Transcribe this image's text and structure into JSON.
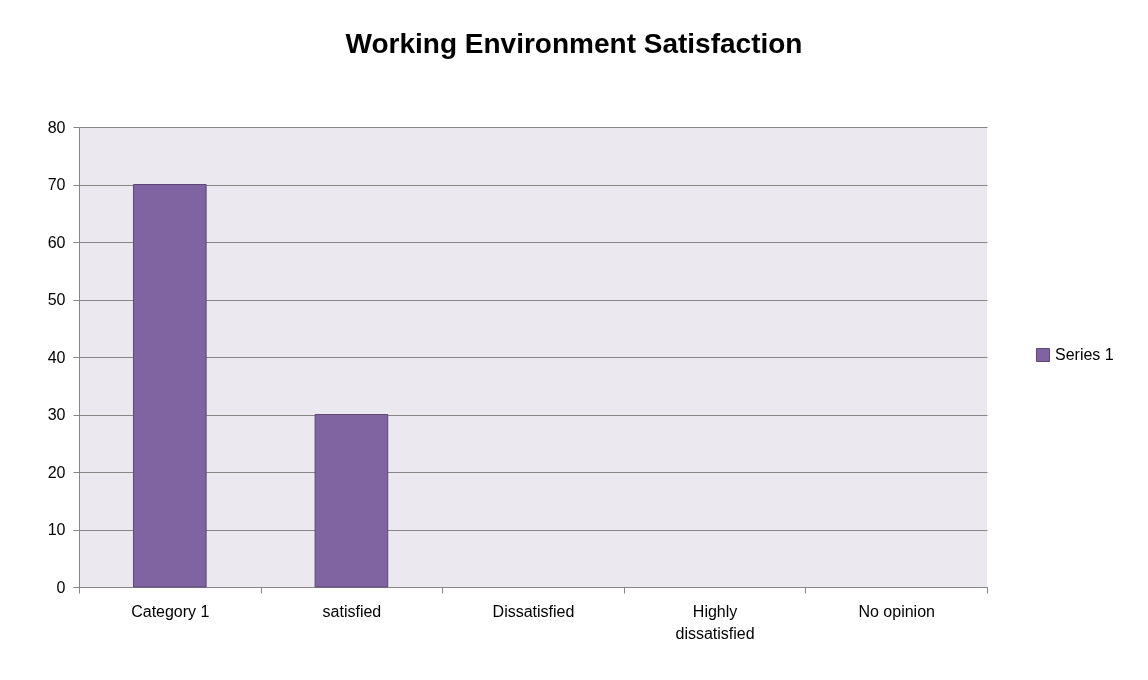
{
  "chart_data": {
    "type": "bar",
    "title": "Working Environment Satisfaction",
    "categories": [
      "Category 1",
      "satisfied",
      "Dissatisfied",
      "Highly dissatisfied",
      "No opinion"
    ],
    "series": [
      {
        "name": "Series 1",
        "color": "#8064a2",
        "values": [
          70,
          30,
          null,
          null,
          null
        ]
      }
    ],
    "ylim": [
      0,
      80
    ],
    "yticks": [
      0,
      10,
      20,
      30,
      40,
      50,
      60,
      70,
      80
    ],
    "grid": "y",
    "legend": "right"
  }
}
